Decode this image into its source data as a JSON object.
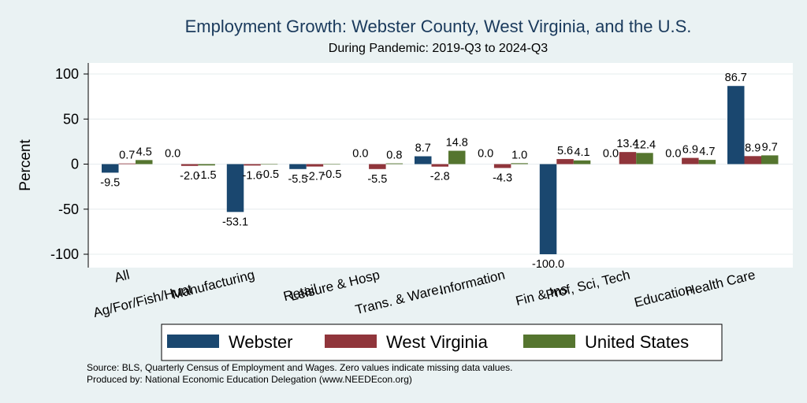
{
  "chart_data": {
    "type": "bar",
    "title": "Employment Growth: Webster County, West Virginia, and the U.S.",
    "subtitle": "During Pandemic: 2019-Q3 to 2024-Q3",
    "ylabel": "Percent",
    "xlabel": "",
    "ylim": [
      -110,
      112
    ],
    "yticks": [
      100,
      50,
      0,
      -50,
      -100
    ],
    "grid": true,
    "legend_position": "bottom",
    "categories": [
      "All",
      "Ag/For/Fish/Hunt",
      "Manufacturing",
      "Retail",
      "Leisure & Hosp",
      "Trans. & Ware.",
      "Information",
      "Fin & Ins",
      "Prof, Sci, Tech",
      "Education",
      "Health Care"
    ],
    "series": [
      {
        "name": "Webster",
        "color": "#1a476f",
        "values": [
          -9.5,
          0.0,
          -53.1,
          -5.5,
          0.0,
          8.7,
          0.0,
          -100.0,
          0.0,
          0.0,
          86.7
        ],
        "labels": [
          "-9.5",
          "0.0",
          "-53.1",
          "-5.5",
          "0.0",
          "8.7",
          "0.0",
          "-100.0",
          "0.0",
          "0.0",
          "86.7"
        ]
      },
      {
        "name": "West Virginia",
        "color": "#90353b",
        "values": [
          0.7,
          -2.0,
          -1.6,
          -2.7,
          -5.5,
          -2.8,
          -4.3,
          5.6,
          13.4,
          6.9,
          8.9
        ],
        "labels": [
          "0.7",
          "-2.0",
          "-1.6",
          "-2.7",
          "-5.5",
          "-2.8",
          "-4.3",
          "5.6",
          "13.4",
          "6.9",
          "8.9"
        ]
      },
      {
        "name": "United States",
        "color": "#55752f",
        "values": [
          4.5,
          -1.5,
          -0.5,
          -0.5,
          0.8,
          14.8,
          1.0,
          4.1,
          12.4,
          4.7,
          9.7
        ],
        "labels": [
          "4.5",
          "-1.5",
          "-0.5",
          "-0.5",
          "0.8",
          "14.8",
          "1.0",
          "4.1",
          "12.4",
          "4.7",
          "9.7"
        ]
      }
    ]
  },
  "footnotes": {
    "source": "Source: BLS, Quarterly Census of Employment and Wages. Zero values indicate missing data values.",
    "produced_by": "Produced by: National Economic Education Delegation (www.NEEDEcon.org)"
  }
}
